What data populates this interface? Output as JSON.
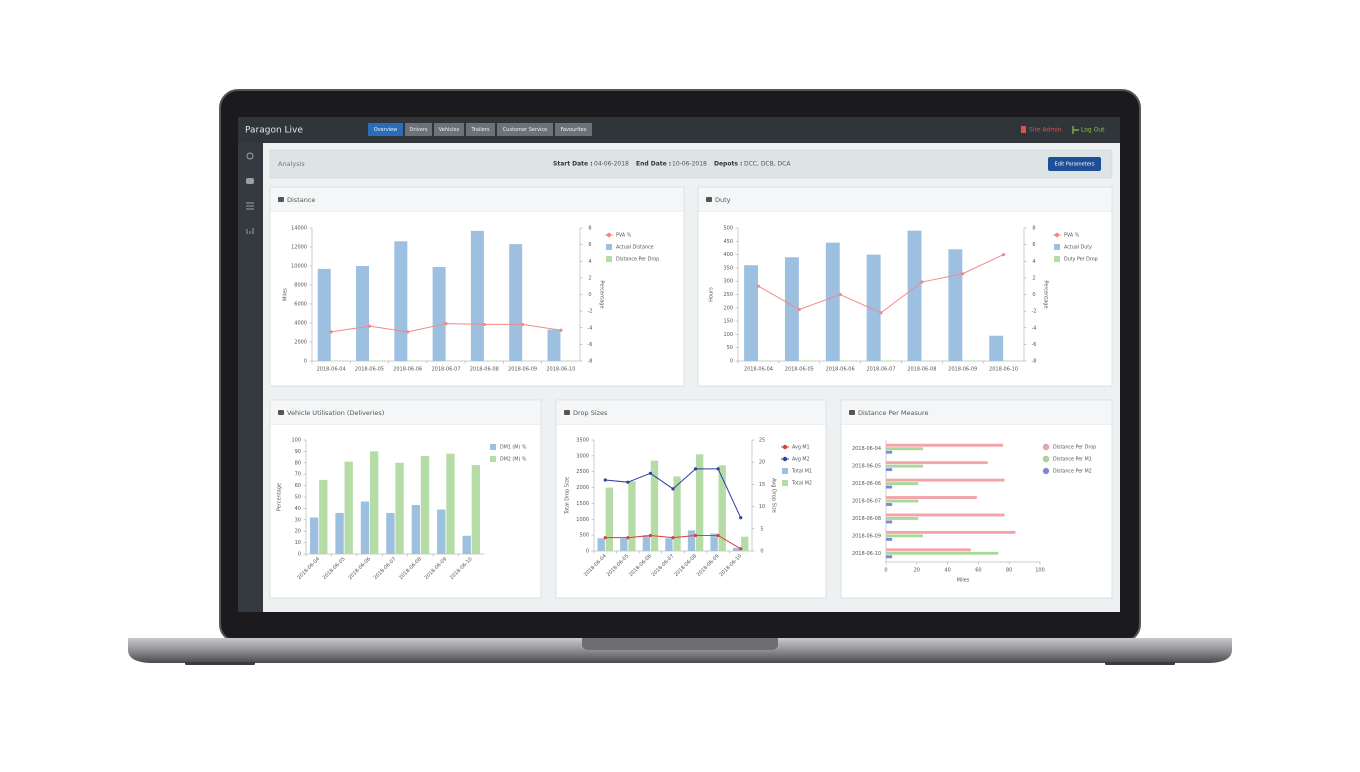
{
  "nav": {
    "brand": "Paragon Live",
    "tabs": [
      "Overview",
      "Drivers",
      "Vehicles",
      "Trailers",
      "Customer Service",
      "Favourites"
    ],
    "site_admin": "Site Admin",
    "log_out": "Log Out"
  },
  "filter_bar": {
    "title": "Analysis",
    "start_date_label": "Start Date :",
    "start_date": "04-06-2018",
    "end_date_label": "End Date :",
    "end_date": "10-06-2018",
    "depots_label": "Depots :",
    "depots": "DCC, DCB, DCA",
    "button": "Edit Parameters"
  },
  "chart_data": [
    {
      "type": "bar",
      "title": "Distance",
      "ylabel": "Miles",
      "y2label": "Percentage",
      "categories": [
        "2018-06-04",
        "2018-06-05",
        "2018-06-06",
        "2018-06-07",
        "2018-06-08",
        "2018-06-09",
        "2018-06-10"
      ],
      "ylim": [
        0,
        14000
      ],
      "yticks": [
        0,
        2000,
        4000,
        6000,
        8000,
        10000,
        12000,
        14000
      ],
      "y2lim": [
        -8,
        8
      ],
      "y2ticks": [
        -8,
        -6,
        -4,
        -2,
        0,
        2,
        4,
        6,
        8
      ],
      "series": [
        {
          "name": "PVA %",
          "type": "line",
          "axis": "y2",
          "color": "#f08a8a",
          "values": [
            -4.5,
            -3.8,
            -4.5,
            -3.5,
            -3.6,
            -3.6,
            -4.3
          ]
        },
        {
          "name": "Actual Distance",
          "type": "bar",
          "color": "#9dbfe0",
          "values": [
            9700,
            10000,
            12600,
            9900,
            13700,
            12300,
            3300
          ]
        },
        {
          "name": "Distance Per Drop",
          "type": "bar",
          "color": "#b5dca6",
          "values": [
            50,
            50,
            50,
            50,
            50,
            50,
            50
          ]
        }
      ]
    },
    {
      "type": "bar",
      "title": "Duty",
      "ylabel": "Hours",
      "y2label": "Percentage",
      "categories": [
        "2018-06-04",
        "2018-06-05",
        "2018-06-06",
        "2018-06-07",
        "2018-06-08",
        "2018-06-09",
        "2018-06-10"
      ],
      "ylim": [
        0,
        500
      ],
      "yticks": [
        0,
        50,
        100,
        150,
        200,
        250,
        300,
        350,
        400,
        450,
        500
      ],
      "y2lim": [
        -8,
        8
      ],
      "y2ticks": [
        -8,
        -6,
        -4,
        -2,
        0,
        2,
        4,
        6,
        8
      ],
      "series": [
        {
          "name": "PVA %",
          "type": "line",
          "axis": "y2",
          "color": "#f08a8a",
          "values": [
            1,
            -1.8,
            0,
            -2.2,
            1.5,
            2.5,
            4.8
          ]
        },
        {
          "name": "Actual Duty",
          "type": "bar",
          "color": "#9dbfe0",
          "values": [
            360,
            390,
            445,
            400,
            490,
            420,
            95
          ]
        },
        {
          "name": "Duty Per Drop",
          "type": "bar",
          "color": "#b5dca6",
          "values": [
            2,
            2,
            2,
            2,
            2,
            2,
            2
          ]
        }
      ]
    },
    {
      "type": "bar",
      "title": "Vehicle Utilisation (Deliveries)",
      "ylabel": "Percentage",
      "categories": [
        "2018-06-04",
        "2018-06-05",
        "2018-06-06",
        "2018-06-07",
        "2018-06-08",
        "2018-06-09",
        "2018-06-10"
      ],
      "ylim": [
        0,
        100
      ],
      "yticks": [
        0,
        10,
        20,
        30,
        40,
        50,
        60,
        70,
        80,
        90,
        100
      ],
      "series": [
        {
          "name": "DM1 (M) %",
          "type": "bar",
          "color": "#9dbfe0",
          "values": [
            32,
            36,
            46,
            36,
            43,
            39,
            16
          ]
        },
        {
          "name": "DM2 (M) %",
          "type": "bar",
          "color": "#b5dca6",
          "values": [
            65,
            81,
            90,
            80,
            86,
            88,
            78
          ]
        }
      ]
    },
    {
      "type": "bar",
      "title": "Drop Sizes",
      "ylabel": "Total Drop Size",
      "y2label": "Avg Drop Size",
      "categories": [
        "2018-06-04",
        "2018-06-05",
        "2018-06-06",
        "2018-06-07",
        "2018-06-08",
        "2018-06-09",
        "2018-06-10"
      ],
      "ylim": [
        0,
        3500
      ],
      "yticks": [
        0,
        500,
        1000,
        1500,
        2000,
        2500,
        3000,
        3500
      ],
      "y2lim": [
        0,
        25
      ],
      "y2ticks": [
        0,
        5,
        10,
        15,
        20,
        25
      ],
      "series": [
        {
          "name": "Avg M1",
          "type": "line",
          "axis": "y2",
          "color": "#e03c3c",
          "values": [
            3,
            3,
            3.5,
            3,
            3.5,
            3.5,
            0.5
          ]
        },
        {
          "name": "Avg M2",
          "type": "line",
          "axis": "y2",
          "color": "#2b3f9e",
          "values": [
            16,
            15.5,
            17.5,
            14,
            18.5,
            18.5,
            7.5
          ]
        },
        {
          "name": "Total M1",
          "type": "bar",
          "color": "#9dbfe0",
          "values": [
            400,
            400,
            500,
            400,
            650,
            550,
            100
          ]
        },
        {
          "name": "Total M2",
          "type": "bar",
          "color": "#b5dca6",
          "values": [
            2000,
            2200,
            2850,
            2350,
            3050,
            2700,
            450
          ]
        }
      ]
    },
    {
      "type": "barh",
      "title": "Distance Per Measure",
      "xlabel": "Miles",
      "categories": [
        "2018-06-04",
        "2018-06-05",
        "2018-06-06",
        "2018-06-07",
        "2018-06-08",
        "2018-06-09",
        "2018-06-10"
      ],
      "xlim": [
        0,
        100
      ],
      "xticks": [
        0,
        20,
        40,
        60,
        80,
        100
      ],
      "series": [
        {
          "name": "Distance Per Drop",
          "type": "bar",
          "color": "#f4a3a8",
          "values": [
            76,
            66,
            77,
            59,
            77,
            84,
            55
          ]
        },
        {
          "name": "Distance Per M1",
          "type": "bar",
          "color": "#a8d99a",
          "values": [
            24,
            24,
            21,
            21,
            21,
            24,
            73
          ]
        },
        {
          "name": "Distance Per M2",
          "type": "bar",
          "color": "#7f86d8",
          "values": [
            4,
            4,
            4,
            4,
            4,
            4,
            4
          ]
        }
      ]
    }
  ]
}
